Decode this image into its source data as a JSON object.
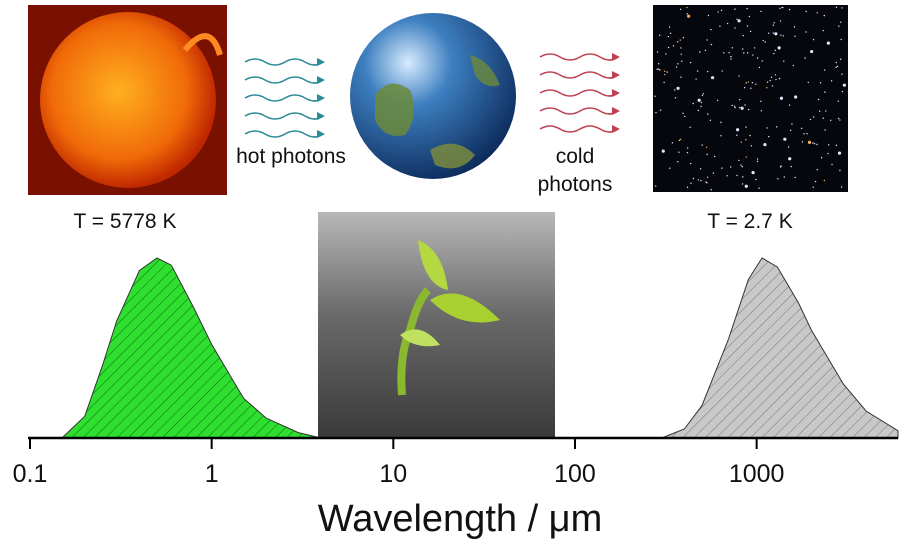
{
  "chart_data": {
    "type": "area",
    "xlabel": "Wavelength / μm",
    "xscale": "log",
    "xlim": [
      0.1,
      6000
    ],
    "xticks": [
      0.1,
      1,
      10,
      100,
      1000
    ],
    "annotations": [
      "T = 5778 K",
      "T = 2.7 K",
      "hot photons",
      "cold photons"
    ],
    "series": [
      {
        "name": "Sun",
        "color": "#2fdf2f",
        "x": [
          0.15,
          0.2,
          0.25,
          0.3,
          0.4,
          0.5,
          0.6,
          0.8,
          1,
          1.5,
          2,
          3,
          4
        ],
        "values": [
          0,
          0.12,
          0.4,
          0.65,
          0.93,
          1,
          0.96,
          0.72,
          0.52,
          0.22,
          0.11,
          0.03,
          0
        ]
      },
      {
        "name": "Space",
        "color": "#c8c8c8",
        "x": [
          300,
          400,
          500,
          700,
          900,
          1070,
          1300,
          1700,
          2000,
          3000,
          4000,
          6000
        ],
        "values": [
          0,
          0.05,
          0.18,
          0.55,
          0.88,
          1,
          0.95,
          0.75,
          0.6,
          0.3,
          0.15,
          0.04
        ]
      }
    ]
  }
}
